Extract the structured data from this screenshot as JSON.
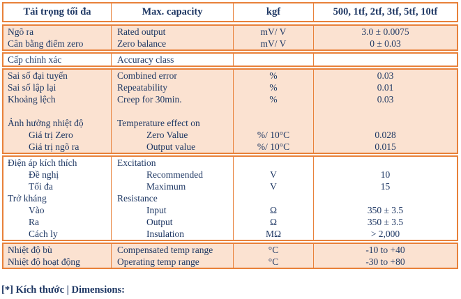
{
  "colors": {
    "border_orange": "#E8813A",
    "row_fill_peach": "#FBE2D1",
    "text_navy": "#1F3864",
    "background": "#FFFFFF"
  },
  "table": {
    "header": {
      "vi": "Tải trọng tối đa",
      "en": "Max. capacity",
      "unit": "kgf",
      "value": "500, 1tf, 2tf, 3tf, 5tf, 10tf"
    },
    "sections": [
      {
        "style": "peach",
        "rows": [
          {
            "vi": "Ngõ ra",
            "en": "Rated output",
            "unit": "mV/ V",
            "value": "3.0 ± 0.0075"
          },
          {
            "vi": "Cân bằng điểm zero",
            "en": "Zero balance",
            "unit": "mV/ V",
            "value": "0 ± 0.03"
          }
        ]
      },
      {
        "style": "white",
        "rows": [
          {
            "vi": "Cấp chính xác",
            "en": "Accuracy class",
            "unit": "",
            "value": ""
          }
        ]
      },
      {
        "style": "peach",
        "rows": [
          {
            "vi": "Sai số đại tuyến",
            "en": "Combined error",
            "unit": "%",
            "value": "0.03"
          },
          {
            "vi": "Sai số lập lại",
            "en": "Repeatability",
            "unit": "%",
            "value": "0.01"
          },
          {
            "vi": "Khoảng lệch",
            "en": "Creep for 30min.",
            "unit": "%",
            "value": "0.03"
          },
          {
            "vi": "",
            "en": "",
            "unit": "",
            "value": ""
          },
          {
            "vi": "Ảnh hưởng nhiệt độ",
            "en": "Temperature effect on",
            "unit": "",
            "value": ""
          },
          {
            "vi": "Giá trị Zero",
            "en": "Zero Value",
            "unit": "%/ 10°C",
            "value": "0.028"
          },
          {
            "vi": "Giá trị ngõ ra",
            "en": "Output value",
            "unit": "%/ 10°C",
            "value": "0.015"
          }
        ]
      },
      {
        "style": "white",
        "rows": [
          {
            "vi": "Điện áp kích thích",
            "en": "Excitation",
            "unit": "",
            "value": ""
          },
          {
            "vi": "Đề nghị",
            "en": "Recommended",
            "unit": "V",
            "value": "10"
          },
          {
            "vi": "Tối đa",
            "en": "Maximum",
            "unit": "V",
            "value": "15"
          },
          {
            "vi": "Trở kháng",
            "en": "Resistance",
            "unit": "",
            "value": ""
          },
          {
            "vi": "Vào",
            "en": "Input",
            "unit": "Ω",
            "value": "350 ± 3.5"
          },
          {
            "vi": "Ra",
            "en": "Output",
            "unit": "Ω",
            "value": "350 ± 3.5"
          },
          {
            "vi": "Cách ly",
            "en": "Insulation",
            "unit": "MΩ",
            "value": "> 2,000"
          }
        ]
      },
      {
        "style": "peach",
        "rows": [
          {
            "vi": "Nhiệt độ bù",
            "en": "Compensated temp range",
            "unit": "°C",
            "value": "-10 to +40"
          },
          {
            "vi": "Nhiệt độ hoạt động",
            "en": "Operating temp range",
            "unit": "°C",
            "value": "-30 to +80"
          }
        ]
      }
    ]
  },
  "footer": {
    "label": "[*] Kích thước | Dimensions:"
  }
}
